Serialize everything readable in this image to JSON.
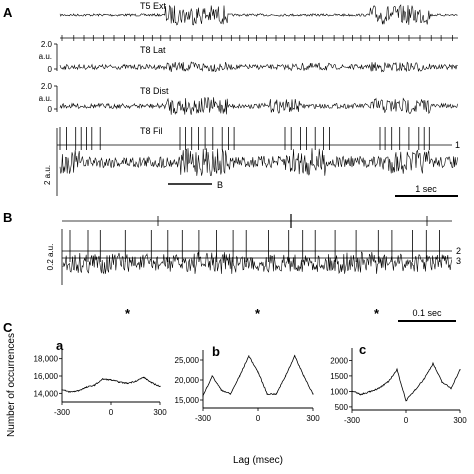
{
  "panel_labels": {
    "a": "A",
    "b": "B",
    "c": "C"
  },
  "panel_a": {
    "traces": [
      {
        "name": "T5 Ext"
      },
      {
        "name": "T8 Lat"
      },
      {
        "name": "T8 Dist"
      },
      {
        "name": "T8 Fil"
      }
    ],
    "lat_ticks": [
      "2.0",
      "a.u.",
      "0"
    ],
    "dist_ticks": [
      "2.0",
      "a.u.",
      "0"
    ],
    "fil_scale": "2 a.u.",
    "threshold_label": "1",
    "inset_marker": "B",
    "scalebar": "1 sec"
  },
  "panel_b": {
    "scale": "0.2 a.u.",
    "threshold_labels": [
      "2",
      "3"
    ],
    "asterisk": "*",
    "scalebar": "0.1 sec"
  },
  "panel_c": {
    "ylabel": "Number of occurrences",
    "xlabel": "Lag (msec)"
  },
  "chart_data": [
    {
      "type": "line",
      "panel": "a",
      "title": "a",
      "xlabel": "",
      "ylabel": "Number of occurrences",
      "x": [
        -300,
        -250,
        -200,
        -150,
        -100,
        -50,
        0,
        50,
        100,
        150,
        200,
        250,
        300
      ],
      "series": [
        {
          "values": [
            14400,
            14150,
            14300,
            14700,
            14950,
            15650,
            15550,
            15300,
            15150,
            15400,
            15850,
            15200,
            14800
          ]
        }
      ],
      "xlim": [
        -300,
        300
      ],
      "ylim": [
        13000,
        19000
      ],
      "xticks": [
        -300,
        0,
        300
      ],
      "yticks": [
        "14,000",
        "16,000",
        "18,000"
      ]
    },
    {
      "type": "line",
      "panel": "b",
      "title": "b",
      "xlabel": "Lag (msec)",
      "ylabel": "",
      "x": [
        -300,
        -250,
        -200,
        -150,
        -100,
        -50,
        0,
        50,
        100,
        150,
        200,
        250,
        300
      ],
      "series": [
        {
          "values": [
            16000,
            21000,
            17500,
            16500,
            21000,
            26000,
            22000,
            16500,
            16500,
            21000,
            26000,
            21000,
            16500
          ]
        }
      ],
      "xlim": [
        -300,
        300
      ],
      "ylim": [
        13000,
        27500
      ],
      "xticks": [
        -300,
        0,
        300
      ],
      "yticks": [
        "15,000",
        "20,000",
        "25,000"
      ]
    },
    {
      "type": "line",
      "panel": "c",
      "title": "c",
      "xlabel": "",
      "ylabel": "",
      "x": [
        -300,
        -250,
        -200,
        -150,
        -100,
        -50,
        0,
        50,
        100,
        150,
        200,
        250,
        300
      ],
      "series": [
        {
          "values": [
            1000,
            900,
            1000,
            1100,
            1300,
            1700,
            700,
            1050,
            1400,
            1900,
            1300,
            1100,
            1700
          ]
        }
      ],
      "xlim": [
        -300,
        300
      ],
      "ylim": [
        400,
        2400
      ],
      "xticks": [
        "-300",
        "0",
        "300"
      ],
      "yticks": [
        "500",
        "1000",
        "1500",
        "2000"
      ]
    }
  ]
}
